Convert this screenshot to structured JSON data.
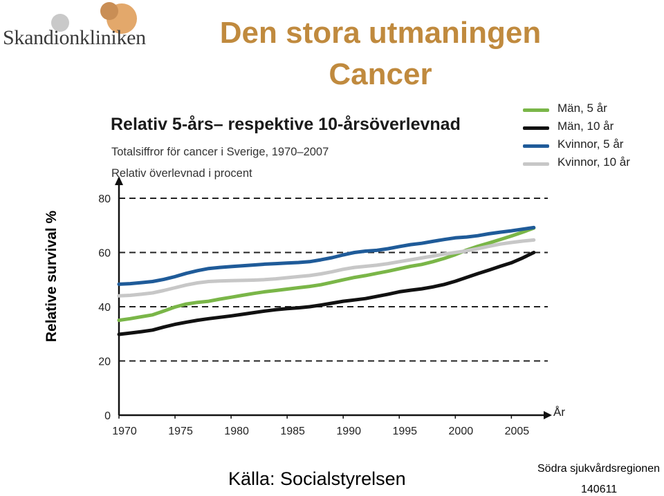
{
  "logo": {
    "text": "Skandionkliniken",
    "colors": [
      "#c9c9c9",
      "#e3a86b",
      "#c98e55"
    ]
  },
  "title_line1": "Den stora utmaningen",
  "title_line2": "Cancer",
  "side_label": "Relative survival %",
  "chart_data": {
    "type": "line",
    "title": "Relativ 5-års– respektive 10-årsöverlevnad",
    "subtitle": "Totalsiffror för cancer i Sverige, 1970–2007",
    "ylabel": "Relativ överlevnad i procent",
    "xlabel": "År",
    "xlim": [
      1970,
      2008
    ],
    "ylim": [
      0,
      80
    ],
    "xticks": [
      1970,
      1975,
      1980,
      1985,
      1990,
      1995,
      2000,
      2005
    ],
    "yticks": [
      0,
      20,
      40,
      60,
      80
    ],
    "dashed_gridlines": [
      20,
      40,
      60,
      80
    ],
    "legend_position": "top-right",
    "x": [
      1970,
      1971,
      1972,
      1973,
      1974,
      1975,
      1976,
      1977,
      1978,
      1979,
      1980,
      1981,
      1982,
      1983,
      1984,
      1985,
      1986,
      1987,
      1988,
      1989,
      1990,
      1991,
      1992,
      1993,
      1994,
      1995,
      1996,
      1997,
      1998,
      1999,
      2000,
      2001,
      2002,
      2003,
      2004,
      2005,
      2006,
      2007
    ],
    "series": [
      {
        "name": "Män, 5 år",
        "color": "#7ab648",
        "values": [
          35,
          35.6,
          36.3,
          37,
          38.4,
          39.9,
          41,
          41.6,
          42,
          42.8,
          43.5,
          44.2,
          44.9,
          45.5,
          46,
          46.5,
          47,
          47.5,
          48.1,
          49,
          49.9,
          50.8,
          51.5,
          52.3,
          53.1,
          54,
          54.9,
          55.6,
          56.6,
          57.8,
          59.2,
          60.9,
          62.3,
          63.5,
          64.8,
          66.1,
          67.5,
          69
        ]
      },
      {
        "name": "Män, 10 år",
        "color": "#111111",
        "values": [
          29.8,
          30.3,
          30.8,
          31.4,
          32.5,
          33.5,
          34.3,
          35,
          35.6,
          36.1,
          36.6,
          37.2,
          37.8,
          38.4,
          38.9,
          39.3,
          39.6,
          40,
          40.6,
          41.3,
          42,
          42.5,
          43,
          43.8,
          44.6,
          45.5,
          46.1,
          46.6,
          47.3,
          48.2,
          49.4,
          50.8,
          52.2,
          53.5,
          54.9,
          56.2,
          58,
          60
        ]
      },
      {
        "name": "Kvinnor, 5 år",
        "color": "#1f5b99",
        "values": [
          48.3,
          48.5,
          48.9,
          49.3,
          50.1,
          51.1,
          52.3,
          53.3,
          54.1,
          54.5,
          54.8,
          55.1,
          55.4,
          55.7,
          55.9,
          56.1,
          56.3,
          56.6,
          57.3,
          58.1,
          59.1,
          60,
          60.5,
          60.8,
          61.4,
          62.2,
          62.9,
          63.4,
          64.1,
          64.8,
          65.4,
          65.7,
          66.2,
          66.9,
          67.5,
          68,
          68.6,
          69.2
        ]
      },
      {
        "name": "Kvinnor, 10 år",
        "color": "#c7c7c7",
        "values": [
          44,
          44.2,
          44.6,
          45.1,
          46,
          47,
          48,
          48.8,
          49.3,
          49.5,
          49.6,
          49.7,
          49.8,
          50,
          50.3,
          50.7,
          51.1,
          51.5,
          52.1,
          52.9,
          53.8,
          54.5,
          54.9,
          55.3,
          55.9,
          56.6,
          57.3,
          58,
          58.7,
          59.4,
          60,
          60.6,
          61.4,
          62.3,
          63.1,
          63.7,
          64.2,
          64.6
        ]
      }
    ]
  },
  "footer": {
    "source": "Källa: Socialstyrelsen",
    "region": "Södra sjukvårdsregionen",
    "date": "140611"
  }
}
